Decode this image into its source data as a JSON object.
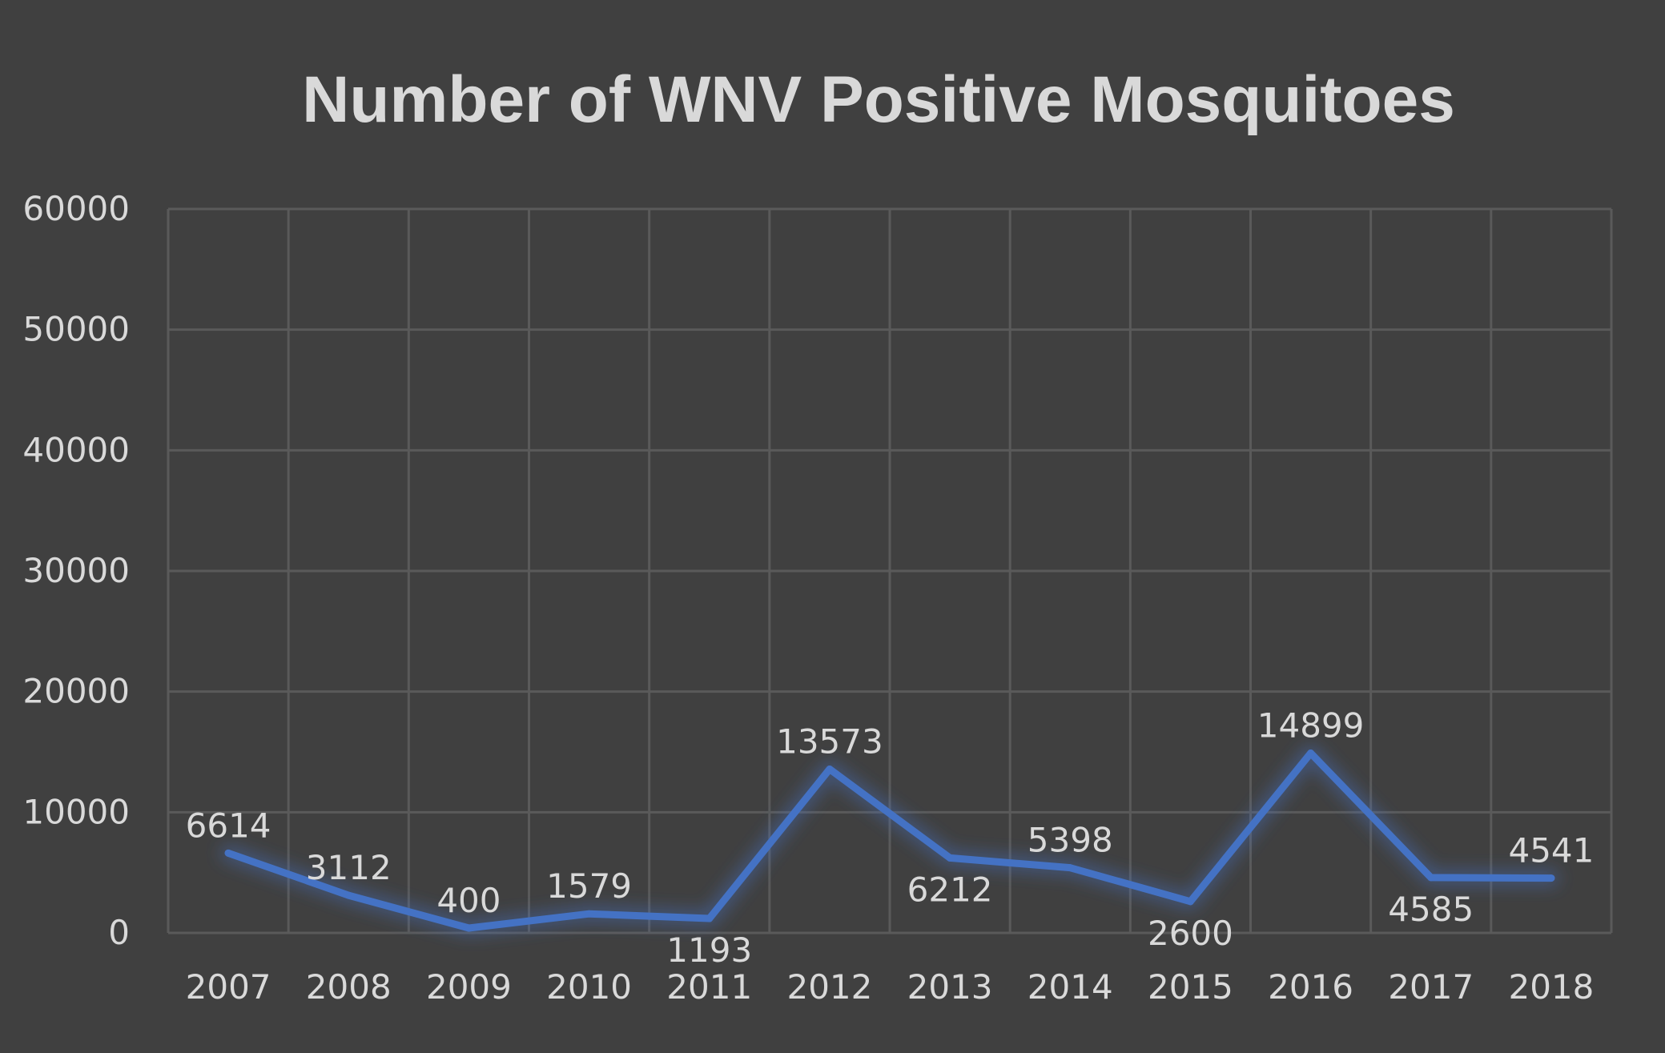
{
  "chart_data": {
    "type": "line",
    "title": "Number of WNV Positive Mosquitoes",
    "xlabel": "",
    "ylabel": "",
    "categories": [
      "2007",
      "2008",
      "2009",
      "2010",
      "2011",
      "2012",
      "2013",
      "2014",
      "2015",
      "2016",
      "2017",
      "2018"
    ],
    "series": [
      {
        "values": [
          6614,
          3112,
          400,
          1579,
          1193,
          13573,
          6212,
          5398,
          2600,
          14899,
          4585,
          4541
        ],
        "color": "#4472c4"
      }
    ],
    "ylim": [
      0,
      60000
    ],
    "yticks": [
      "0",
      "10000",
      "20000",
      "30000",
      "40000",
      "50000",
      "60000"
    ],
    "data_labels": [
      "6614",
      "3112",
      "400",
      "1579",
      "1193",
      "13573",
      "6212",
      "5398",
      "2600",
      "14899",
      "4585",
      "4541"
    ],
    "data_label_placement": [
      "above",
      "above",
      "above",
      "above",
      "below",
      "above",
      "below",
      "above",
      "below",
      "above",
      "below",
      "above"
    ],
    "grid": true,
    "legend": "none",
    "background": "#404040",
    "text_color": "#d9d9d9",
    "grid_color": "#5a5a5a"
  }
}
